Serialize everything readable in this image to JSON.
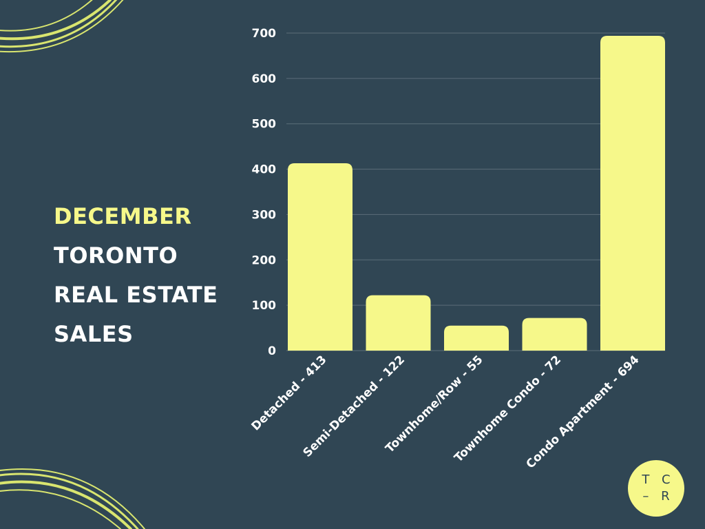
{
  "heading": {
    "line1": "DECEMBER",
    "line2": "TORONTO",
    "line3": "REAL ESTATE",
    "line4": "SALES"
  },
  "logo": {
    "line1": "T C",
    "line2": "– R"
  },
  "colors": {
    "background": "#304654",
    "bar": "#f6f88a",
    "accent_text": "#f6f88a",
    "text": "#ffffff",
    "grid": "#5b6e79"
  },
  "chart_data": {
    "type": "bar",
    "categories": [
      "Detached - 413",
      "Semi-Detached - 122",
      "Townhome/Row - 55",
      "Townhome Condo - 72",
      "Condo Apartment - 694"
    ],
    "values": [
      413,
      122,
      55,
      72,
      694
    ],
    "ylim": [
      0,
      700
    ],
    "yticks": [
      0,
      100,
      200,
      300,
      400,
      500,
      600,
      700
    ],
    "grid": true,
    "xlabel": "",
    "ylabel": ""
  }
}
